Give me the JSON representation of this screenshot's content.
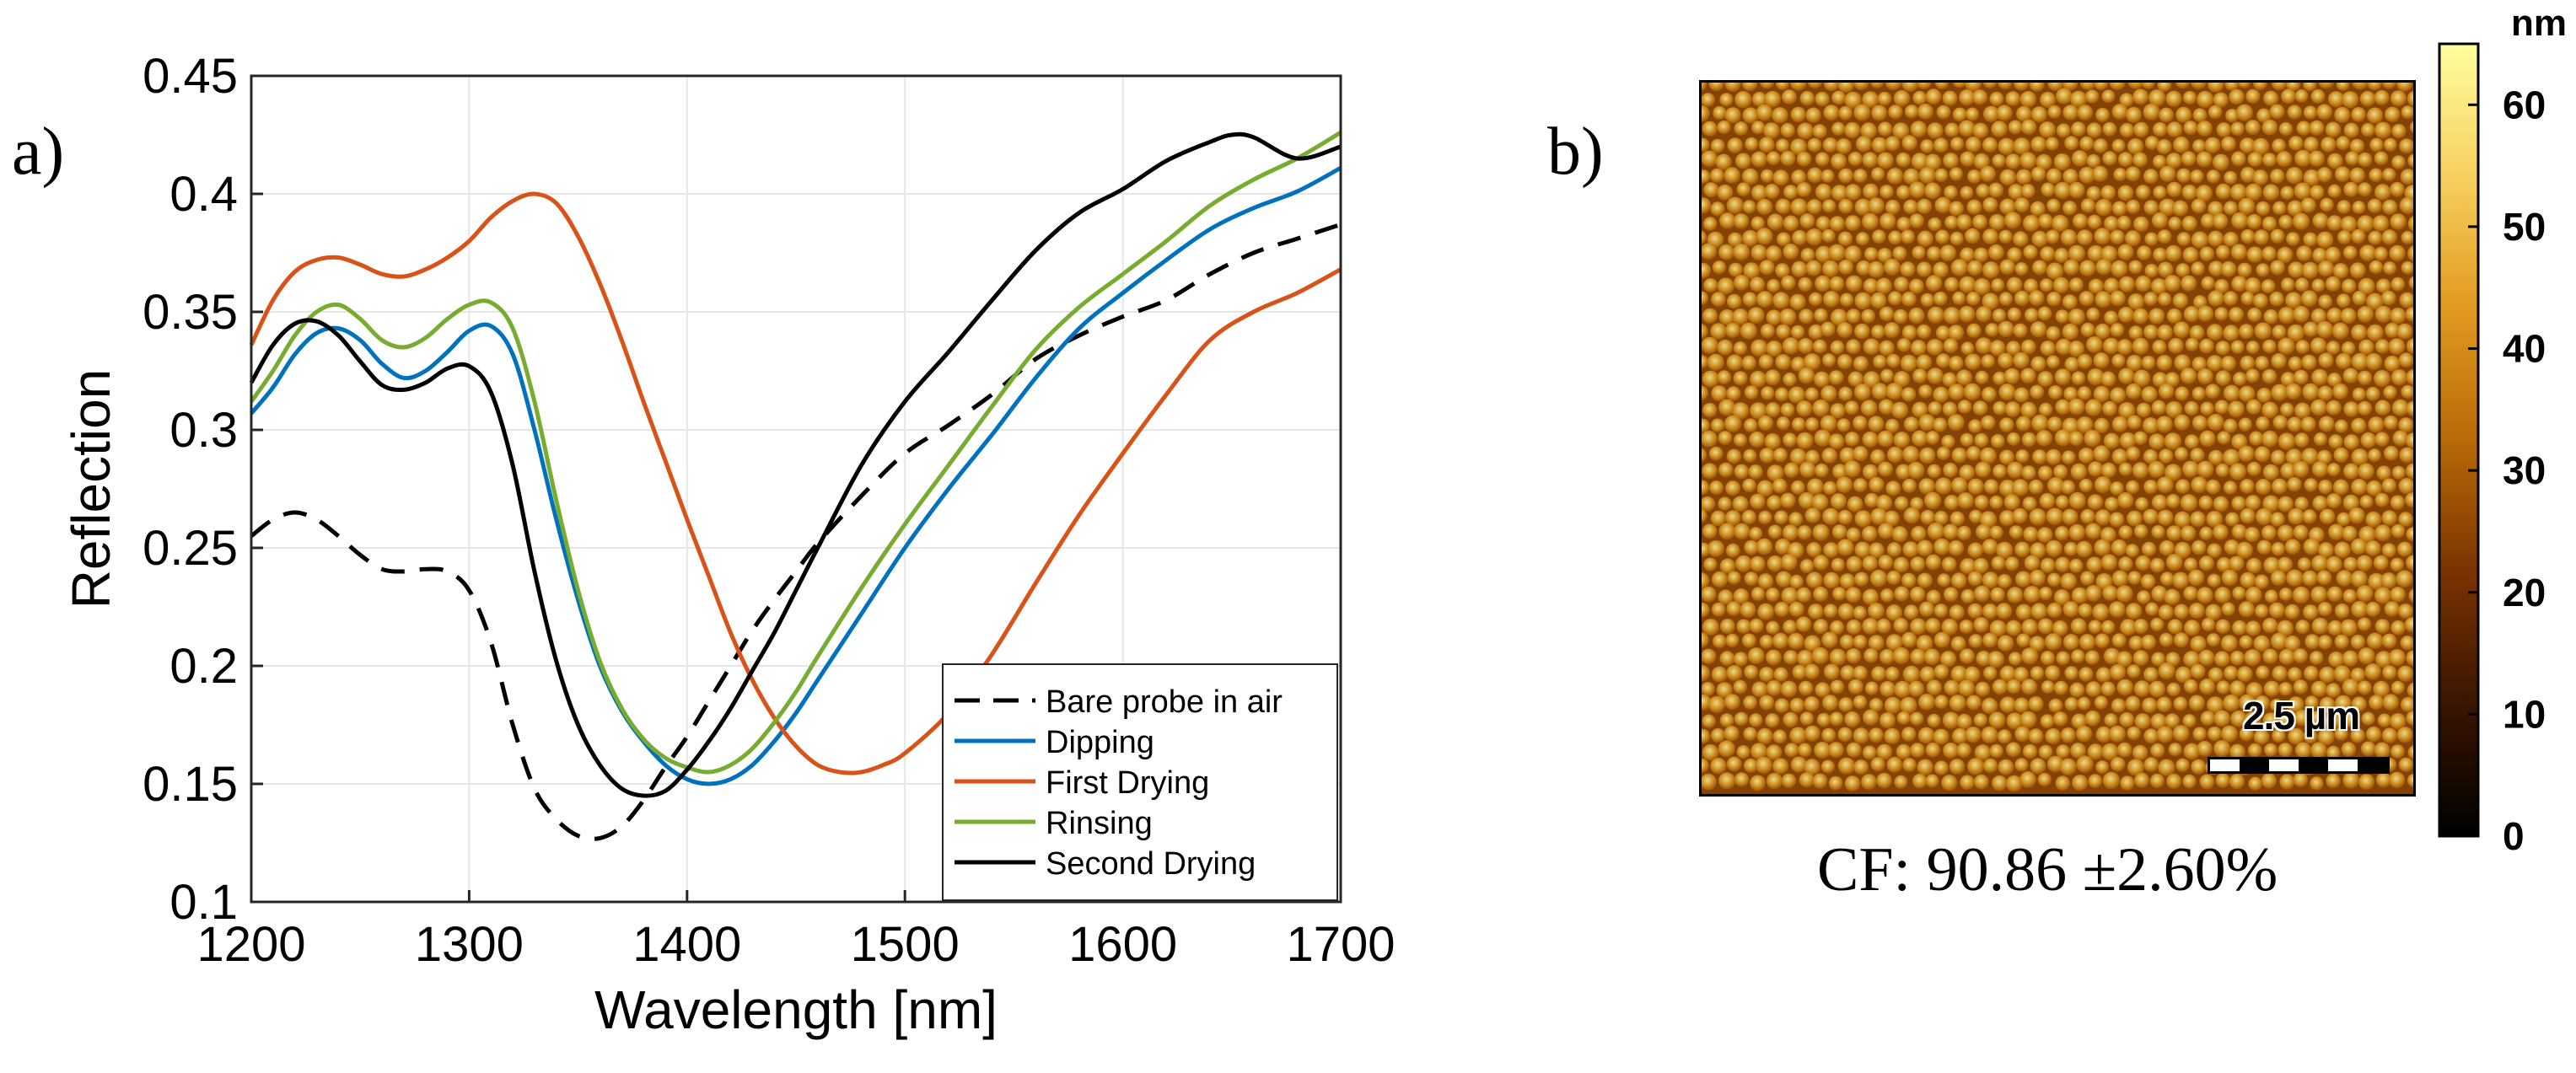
{
  "panel_labels": {
    "a": "a)",
    "b": "b)"
  },
  "chart_data": {
    "type": "line",
    "xlabel": "Wavelength [nm]",
    "ylabel": "Reflection",
    "xlim": [
      1200,
      1700
    ],
    "ylim": [
      0.1,
      0.45
    ],
    "xticks": [
      1200,
      1300,
      1400,
      1500,
      1600,
      1700
    ],
    "yticks": [
      0.1,
      0.15,
      0.2,
      0.25,
      0.3,
      0.35,
      0.4,
      0.45
    ],
    "ytick_labels": [
      "0.1",
      "0.15",
      "0.2",
      "0.25",
      "0.3",
      "0.35",
      "0.4",
      "0.45"
    ],
    "grid": true,
    "legend_position": "bottom-right",
    "series": [
      {
        "name": "Bare probe in air",
        "color": "#000000",
        "dash": true,
        "x": [
          1200,
          1210,
          1220,
          1230,
          1240,
          1250,
          1260,
          1270,
          1280,
          1290,
          1300,
          1310,
          1320,
          1330,
          1340,
          1350,
          1360,
          1370,
          1380,
          1390,
          1400,
          1410,
          1420,
          1430,
          1440,
          1450,
          1460,
          1480,
          1500,
          1520,
          1540,
          1560,
          1580,
          1600,
          1620,
          1640,
          1660,
          1680,
          1700
        ],
        "y": [
          0.255,
          0.262,
          0.265,
          0.262,
          0.255,
          0.247,
          0.241,
          0.24,
          0.241,
          0.24,
          0.232,
          0.21,
          0.175,
          0.148,
          0.135,
          0.128,
          0.127,
          0.132,
          0.143,
          0.157,
          0.17,
          0.185,
          0.2,
          0.215,
          0.228,
          0.24,
          0.252,
          0.272,
          0.29,
          0.302,
          0.315,
          0.33,
          0.34,
          0.348,
          0.355,
          0.366,
          0.375,
          0.381,
          0.387
        ]
      },
      {
        "name": "Dipping",
        "color": "#0072BD",
        "dash": false,
        "x": [
          1200,
          1210,
          1220,
          1230,
          1240,
          1250,
          1260,
          1270,
          1280,
          1290,
          1300,
          1310,
          1320,
          1330,
          1340,
          1350,
          1360,
          1370,
          1380,
          1390,
          1400,
          1410,
          1420,
          1430,
          1440,
          1450,
          1460,
          1480,
          1500,
          1520,
          1540,
          1560,
          1580,
          1600,
          1620,
          1640,
          1660,
          1680,
          1700
        ],
        "y": [
          0.307,
          0.318,
          0.332,
          0.341,
          0.343,
          0.338,
          0.328,
          0.322,
          0.325,
          0.333,
          0.342,
          0.344,
          0.332,
          0.3,
          0.262,
          0.228,
          0.2,
          0.181,
          0.168,
          0.158,
          0.152,
          0.15,
          0.152,
          0.158,
          0.168,
          0.18,
          0.194,
          0.222,
          0.25,
          0.275,
          0.298,
          0.322,
          0.343,
          0.358,
          0.372,
          0.385,
          0.394,
          0.401,
          0.411
        ]
      },
      {
        "name": "First Drying",
        "color": "#D95319",
        "dash": false,
        "x": [
          1200,
          1210,
          1220,
          1230,
          1240,
          1250,
          1260,
          1270,
          1280,
          1290,
          1300,
          1310,
          1320,
          1330,
          1340,
          1350,
          1360,
          1370,
          1380,
          1390,
          1400,
          1410,
          1420,
          1430,
          1440,
          1450,
          1460,
          1470,
          1480,
          1490,
          1500,
          1520,
          1540,
          1560,
          1580,
          1600,
          1620,
          1640,
          1660,
          1680,
          1700
        ],
        "y": [
          0.336,
          0.355,
          0.367,
          0.372,
          0.373,
          0.37,
          0.366,
          0.365,
          0.368,
          0.373,
          0.38,
          0.39,
          0.397,
          0.4,
          0.396,
          0.382,
          0.362,
          0.338,
          0.312,
          0.287,
          0.262,
          0.238,
          0.214,
          0.194,
          0.178,
          0.166,
          0.158,
          0.155,
          0.155,
          0.158,
          0.163,
          0.18,
          0.205,
          0.235,
          0.264,
          0.29,
          0.315,
          0.338,
          0.35,
          0.358,
          0.368
        ]
      },
      {
        "name": "Rinsing",
        "color": "#77AC30",
        "dash": false,
        "x": [
          1200,
          1210,
          1220,
          1230,
          1240,
          1250,
          1260,
          1270,
          1280,
          1290,
          1300,
          1310,
          1320,
          1330,
          1340,
          1350,
          1360,
          1370,
          1380,
          1390,
          1400,
          1410,
          1420,
          1430,
          1440,
          1450,
          1460,
          1480,
          1500,
          1520,
          1540,
          1560,
          1580,
          1600,
          1620,
          1640,
          1660,
          1680,
          1700
        ],
        "y": [
          0.312,
          0.325,
          0.34,
          0.35,
          0.353,
          0.347,
          0.338,
          0.335,
          0.339,
          0.347,
          0.353,
          0.354,
          0.343,
          0.312,
          0.27,
          0.232,
          0.202,
          0.182,
          0.169,
          0.161,
          0.157,
          0.155,
          0.158,
          0.165,
          0.176,
          0.189,
          0.204,
          0.233,
          0.26,
          0.285,
          0.31,
          0.334,
          0.352,
          0.366,
          0.38,
          0.395,
          0.406,
          0.415,
          0.426
        ]
      },
      {
        "name": "Second Drying",
        "color": "#000000",
        "dash": false,
        "x": [
          1200,
          1210,
          1220,
          1230,
          1240,
          1250,
          1260,
          1270,
          1280,
          1290,
          1300,
          1310,
          1320,
          1330,
          1340,
          1350,
          1360,
          1370,
          1380,
          1390,
          1400,
          1410,
          1420,
          1430,
          1440,
          1450,
          1460,
          1480,
          1500,
          1520,
          1540,
          1560,
          1580,
          1600,
          1620,
          1640,
          1650,
          1660,
          1680,
          1700
        ],
        "y": [
          0.32,
          0.336,
          0.345,
          0.346,
          0.34,
          0.329,
          0.319,
          0.317,
          0.32,
          0.326,
          0.327,
          0.316,
          0.285,
          0.24,
          0.202,
          0.175,
          0.158,
          0.148,
          0.145,
          0.147,
          0.156,
          0.168,
          0.182,
          0.198,
          0.214,
          0.232,
          0.25,
          0.285,
          0.312,
          0.333,
          0.355,
          0.376,
          0.392,
          0.402,
          0.414,
          0.422,
          0.425,
          0.424,
          0.415,
          0.42
        ]
      }
    ]
  },
  "afm_image": {
    "colorbar_unit": "nm",
    "colorbar_ticks": [
      0,
      10,
      20,
      30,
      40,
      50,
      60
    ],
    "colorbar_max": 65,
    "scale_bar_label": "2.5 µm",
    "caption": "CF: 90.86 ±2.60%"
  },
  "colors": {
    "grid": "#e6e6e6",
    "axes": "#262626",
    "colormap": [
      "#000000",
      "#3a1500",
      "#7a3300",
      "#b86a08",
      "#e29a20",
      "#f7d060",
      "#ffff9e"
    ]
  }
}
